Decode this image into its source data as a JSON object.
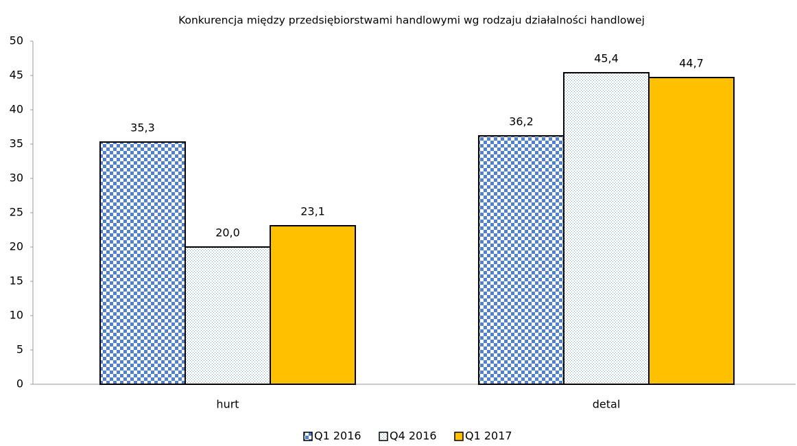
{
  "chart_data": {
    "type": "bar",
    "title": "Konkurencja między przedsiębiorstwami handlowymi wg rodzaju działalności handlowej",
    "categories": [
      "hurt",
      "detal"
    ],
    "series": [
      {
        "name": "Q1 2016",
        "color": "#4f81d0",
        "pattern": "checker",
        "values": [
          35.3,
          36.2
        ],
        "value_labels": [
          "35,3",
          "36,2"
        ]
      },
      {
        "name": "Q4 2016",
        "color": "#6fa8dc",
        "pattern": "dots",
        "values": [
          20.0,
          45.4
        ],
        "value_labels": [
          "20,0",
          "45,4"
        ]
      },
      {
        "name": "Q1 2017",
        "color": "#ffc000",
        "pattern": "solid",
        "values": [
          23.1,
          44.7
        ],
        "value_labels": [
          "23,1",
          "44,7"
        ]
      }
    ],
    "ylim": [
      0,
      50
    ],
    "yticks": [
      0,
      5,
      10,
      15,
      20,
      25,
      30,
      35,
      40,
      45,
      50
    ],
    "grid": false,
    "legend": "bottom"
  }
}
